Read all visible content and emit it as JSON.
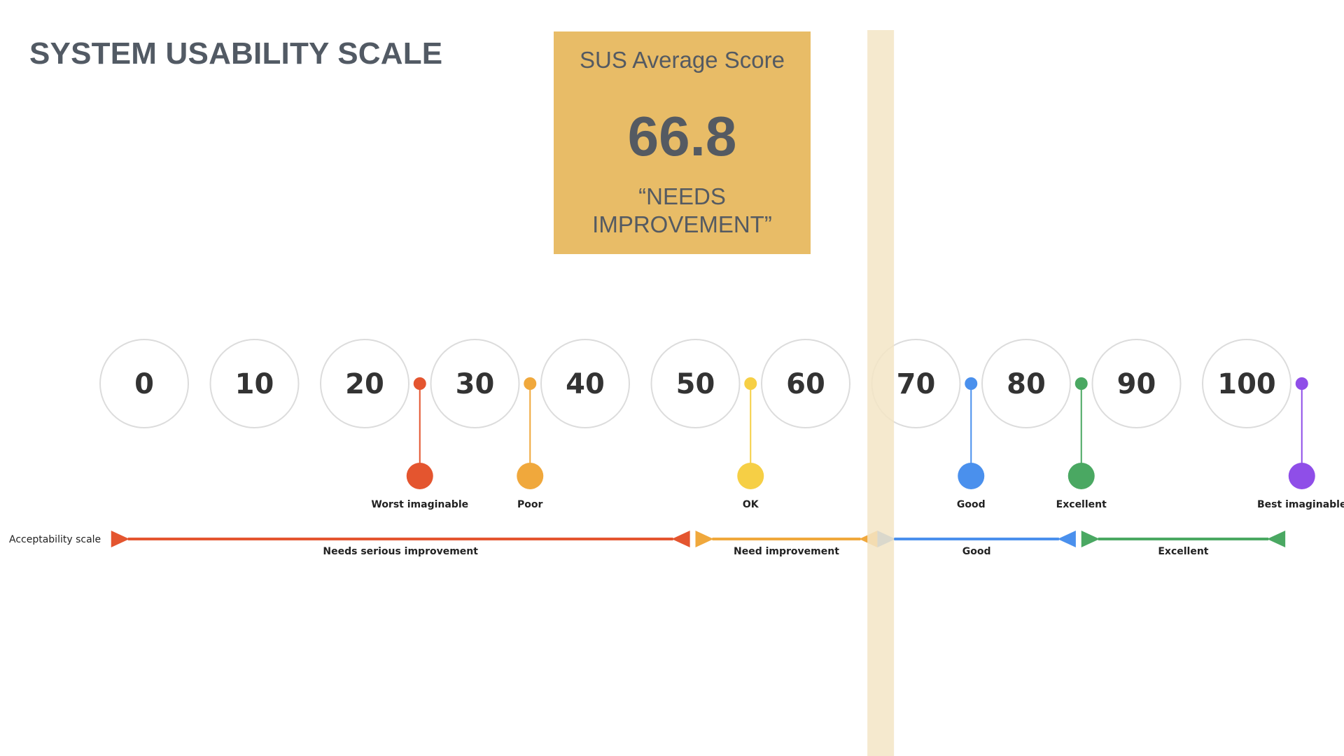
{
  "title": "SYSTEM USABILITY SCALE",
  "score_card": {
    "label": "SUS Average Score",
    "value": "66.8",
    "rating": "“NEEDS IMPROVEMENT”",
    "color": "#e8bc67"
  },
  "score_indicator": {
    "score": 66.8,
    "color": "#f3e5c5"
  },
  "scale": {
    "ticks": [
      "0",
      "10",
      "20",
      "30",
      "40",
      "50",
      "60",
      "70",
      "80",
      "90",
      "100"
    ]
  },
  "adjective_markers": [
    {
      "label": "Worst imaginable",
      "score": 25,
      "color": "#e4552f"
    },
    {
      "label": "Poor",
      "score": 35,
      "color": "#f0a83c"
    },
    {
      "label": "OK",
      "score": 55,
      "color": "#f6cf45"
    },
    {
      "label": "Good",
      "score": 75,
      "color": "#4a90ed"
    },
    {
      "label": "Excellent",
      "score": 85,
      "color": "#4aa862"
    },
    {
      "label": "Best imaginable",
      "score": 105,
      "color": "#8f4ee8"
    }
  ],
  "acceptability": {
    "label": "Acceptability scale",
    "ranges": [
      {
        "label": "Needs serious improvement",
        "start": -3,
        "end": 49.5,
        "color": "#e4552f"
      },
      {
        "label": "Need improvement",
        "start": 50,
        "end": 66.5,
        "color": "#f0a83c"
      },
      {
        "label": "Good",
        "start": 66.5,
        "end": 84.5,
        "color": "#4a90ed"
      },
      {
        "label": "Excellent",
        "start": 85,
        "end": 103.5,
        "color": "#4aa862"
      }
    ]
  }
}
